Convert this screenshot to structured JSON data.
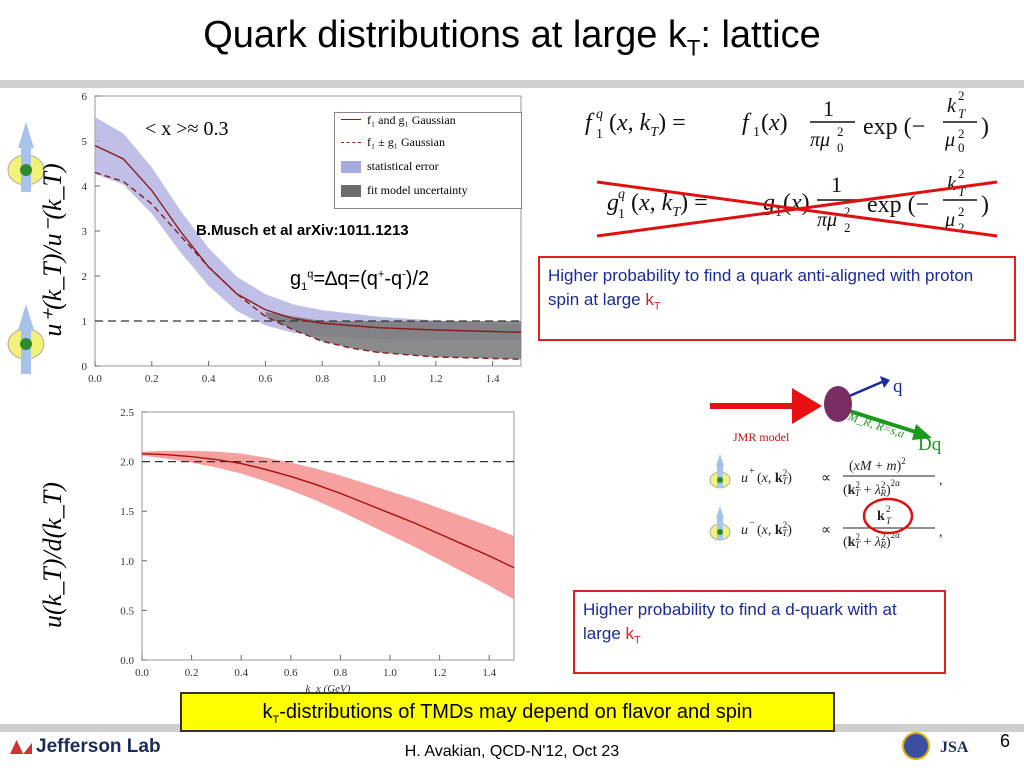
{
  "slide": {
    "title_main": "Quark distributions at large k",
    "title_sub": "T",
    "title_tail": ":  lattice",
    "citation": "B.Musch et al arXiv:1011.1213",
    "g1_label": {
      "a": "g",
      "b": "1",
      "c": "q",
      "d": "=∆q=(q",
      "e": "+",
      "f": "-q",
      "g": "-",
      "h": ")/2"
    },
    "x_avg": "< x >≈ 0.3",
    "box1": {
      "text": "Higher probability to find a quark anti-aligned with proton spin  at large ",
      "k": "k",
      "t": "T"
    },
    "box2": {
      "text": "Higher probability to find a d-quark with at large ",
      "k": "k",
      "t": "T"
    },
    "banner": {
      "k": "k",
      "t": "T",
      "text": "-distributions of TMDs may depend on flavor and spin"
    },
    "footer": "H. Avakian, QCD-N'12,  Oct 23",
    "page_number": "6",
    "logo": "Jefferson Lab",
    "jmr_model": "JMR model",
    "q_label": "q",
    "dq_label": "Dq",
    "mr_label": "M_R, R=s,a"
  },
  "formulas": {
    "f1": "f₁ᵍ(x,k_T) = f₁(x) 1/(πμ₀²) exp(−k_T²/μ₀²)",
    "g1": "g₁ᵍ(x,k_T) = g₁(x) 1/(πμ₂²) exp(−k_T²/μ₂²)",
    "uplus": "u⁺(x,k_T²) ∝ (xM+m)²/(k_T²+λ_R²)^{2α}",
    "uminus": "u⁻(x,k_T²) ∝ k_T²/(k_T²+λ_R²)^{2α}"
  },
  "chart_data": [
    {
      "type": "line",
      "ylabel": "u⁺(k_T)/u⁻(k_T)",
      "xlim": [
        0.0,
        1.5
      ],
      "ylim": [
        0,
        6
      ],
      "x_ticks": [
        "0.0",
        "0.2",
        "0.4",
        "0.6",
        "0.8",
        "1.0",
        "1.2",
        "1.4"
      ],
      "y_ticks": [
        "0",
        "1",
        "2",
        "3",
        "4",
        "5",
        "6"
      ],
      "legend": [
        {
          "label": "f₁ and g₁ Gaussian"
        },
        {
          "label": "f₁ ± g₁ Gaussian"
        },
        {
          "label": "statistical error"
        },
        {
          "label": "fit model uncertainty"
        }
      ],
      "reference_line": 1.0,
      "series": [
        {
          "x": [
            0,
            0.1,
            0.2,
            0.3,
            0.4,
            0.5,
            0.6,
            0.7,
            0.8,
            0.9,
            1.0,
            1.2,
            1.5
          ],
          "values": [
            4.9,
            4.6,
            3.9,
            3.0,
            2.2,
            1.6,
            1.25,
            1.05,
            0.95,
            0.9,
            0.85,
            0.8,
            0.75
          ]
        },
        {
          "x": [
            0,
            0.1,
            0.2,
            0.3,
            0.4,
            0.5,
            0.6,
            0.7,
            0.8,
            0.9,
            1.0,
            1.2,
            1.5
          ],
          "values": [
            4.3,
            4.1,
            3.6,
            2.9,
            2.2,
            1.6,
            1.1,
            0.8,
            0.55,
            0.4,
            0.3,
            0.2,
            0.15
          ]
        }
      ]
    },
    {
      "type": "line",
      "ylabel": "u(k_T)/d(k_T)",
      "xlabel": "k_x  (GeV)",
      "xlim": [
        0.0,
        1.5
      ],
      "ylim": [
        0.0,
        2.5
      ],
      "x_ticks": [
        "0.0",
        "0.2",
        "0.4",
        "0.6",
        "0.8",
        "1.0",
        "1.2",
        "1.4"
      ],
      "y_ticks": [
        "0.0",
        "0.5",
        "1.0",
        "1.5",
        "2.0",
        "2.5"
      ],
      "reference_line": 2.0,
      "series": [
        {
          "x": [
            0.0,
            0.1,
            0.2,
            0.3,
            0.4,
            0.5,
            0.6,
            0.7,
            0.8,
            0.9,
            1.0,
            1.1,
            1.2,
            1.3,
            1.4,
            1.5
          ],
          "values": [
            2.08,
            2.07,
            2.05,
            2.02,
            1.98,
            1.92,
            1.85,
            1.77,
            1.68,
            1.58,
            1.48,
            1.38,
            1.27,
            1.16,
            1.05,
            0.93
          ]
        }
      ]
    }
  ]
}
